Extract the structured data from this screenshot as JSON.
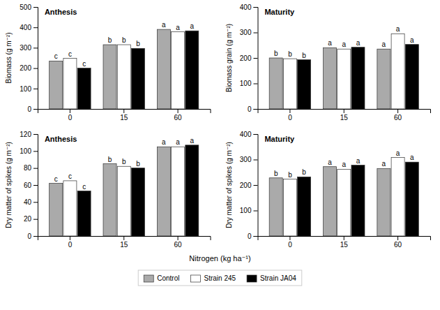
{
  "xlabel": "Nitrogen (kg ha⁻¹)",
  "chart_data": [
    {
      "type": "bar",
      "title": "Anthesis",
      "ylabel": "Biomass (g m⁻²)",
      "categories": [
        "0",
        "15",
        "60"
      ],
      "ylim": [
        0,
        500
      ],
      "yticks": [
        0,
        100,
        200,
        300,
        400,
        500
      ],
      "grid": false,
      "series": [
        {
          "name": "Control",
          "color": "#aaaaaa",
          "values": [
            235,
            315,
            390
          ],
          "annotations": [
            "c",
            "b",
            "a"
          ]
        },
        {
          "name": "Strain 245",
          "color": "#ffffff",
          "values": [
            248,
            315,
            378
          ],
          "annotations": [
            "c",
            "b",
            "a"
          ]
        },
        {
          "name": "Strain JA04",
          "color": "#000000",
          "values": [
            200,
            297,
            383
          ],
          "annotations": [
            "c",
            "b",
            "a"
          ]
        }
      ]
    },
    {
      "type": "bar",
      "title": "Maturity",
      "ylabel": "Biomass grain (g m⁻²)",
      "categories": [
        "0",
        "15",
        "60"
      ],
      "ylim": [
        0,
        400
      ],
      "yticks": [
        0,
        100,
        200,
        300,
        400
      ],
      "grid": false,
      "series": [
        {
          "name": "Control",
          "color": "#aaaaaa",
          "values": [
            200,
            240,
            235
          ],
          "annotations": [
            "b",
            "a",
            "a"
          ]
        },
        {
          "name": "Strain 245",
          "color": "#ffffff",
          "values": [
            197,
            235,
            295
          ],
          "annotations": [
            "b",
            "a",
            "a"
          ]
        },
        {
          "name": "Strain JA04",
          "color": "#000000",
          "values": [
            193,
            242,
            253
          ],
          "annotations": [
            "b",
            "a",
            "a"
          ]
        }
      ]
    },
    {
      "type": "bar",
      "title": "Anthesis",
      "ylabel": "Dry matter of spikes (g m⁻²)",
      "categories": [
        "0",
        "15",
        "60"
      ],
      "ylim": [
        0,
        120
      ],
      "yticks": [
        0,
        20,
        40,
        60,
        80,
        100,
        120
      ],
      "grid": false,
      "series": [
        {
          "name": "Control",
          "color": "#aaaaaa",
          "values": [
            62,
            85,
            105
          ],
          "annotations": [
            "c",
            "b",
            "a"
          ]
        },
        {
          "name": "Strain 245",
          "color": "#ffffff",
          "values": [
            65,
            82,
            105
          ],
          "annotations": [
            "c",
            "b",
            "a"
          ]
        },
        {
          "name": "Strain JA04",
          "color": "#000000",
          "values": [
            53,
            80,
            107
          ],
          "annotations": [
            "c",
            "b",
            "a"
          ]
        }
      ]
    },
    {
      "type": "bar",
      "title": "Maturity",
      "ylabel": "Dry matter of spikes (g m⁻²)",
      "categories": [
        "0",
        "15",
        "60"
      ],
      "ylim": [
        0,
        400
      ],
      "yticks": [
        0,
        100,
        200,
        300,
        400
      ],
      "grid": false,
      "series": [
        {
          "name": "Control",
          "color": "#aaaaaa",
          "values": [
            228,
            272,
            265
          ],
          "annotations": [
            "b",
            "a",
            "a"
          ]
        },
        {
          "name": "Strain 245",
          "color": "#ffffff",
          "values": [
            223,
            262,
            308
          ],
          "annotations": [
            "b",
            "a",
            "a"
          ]
        },
        {
          "name": "Strain JA04",
          "color": "#000000",
          "values": [
            232,
            278,
            290
          ],
          "annotations": [
            "b",
            "a",
            "a"
          ]
        }
      ]
    }
  ]
}
